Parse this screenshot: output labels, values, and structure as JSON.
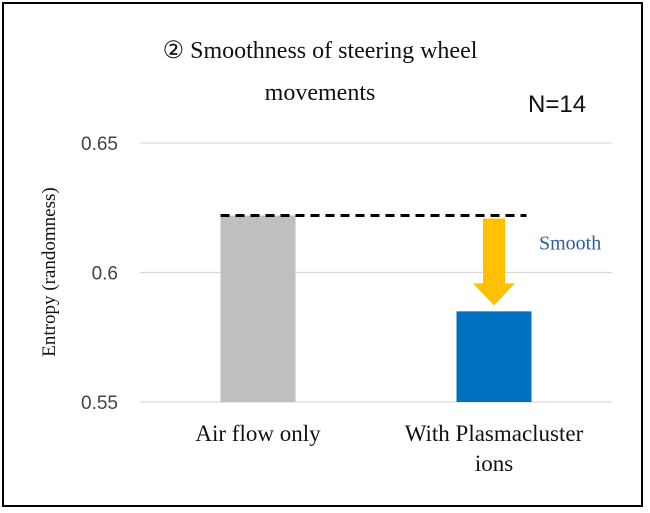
{
  "chart_data": {
    "type": "bar",
    "title": "② Smoothness of steering wheel movements",
    "title_line1": "② Smoothness of steering wheel",
    "title_line2": "movements",
    "note": "N=14",
    "categories": [
      "Air flow only",
      "With Plasmacluster ions"
    ],
    "category_lines": [
      [
        "Air flow only"
      ],
      [
        "With Plasmacluster",
        "ions"
      ]
    ],
    "values": [
      0.622,
      0.585
    ],
    "bar_colors": [
      "#bfbfbf",
      "#0070c0"
    ],
    "ylabel": "Entropy (randomness)",
    "xlabel": "",
    "ylim": [
      0.55,
      0.65
    ],
    "yticks": [
      0.55,
      0.6,
      0.65
    ],
    "ytick_labels": [
      "0.55",
      "0.6",
      "0.65"
    ],
    "grid": true,
    "reference_line": {
      "value": 0.622,
      "style": "dashed",
      "color": "#000000"
    },
    "annotation": {
      "text": "Smooth",
      "arrow": "down",
      "arrow_color": "#ffc000",
      "text_color": "#2e5fa0"
    }
  }
}
